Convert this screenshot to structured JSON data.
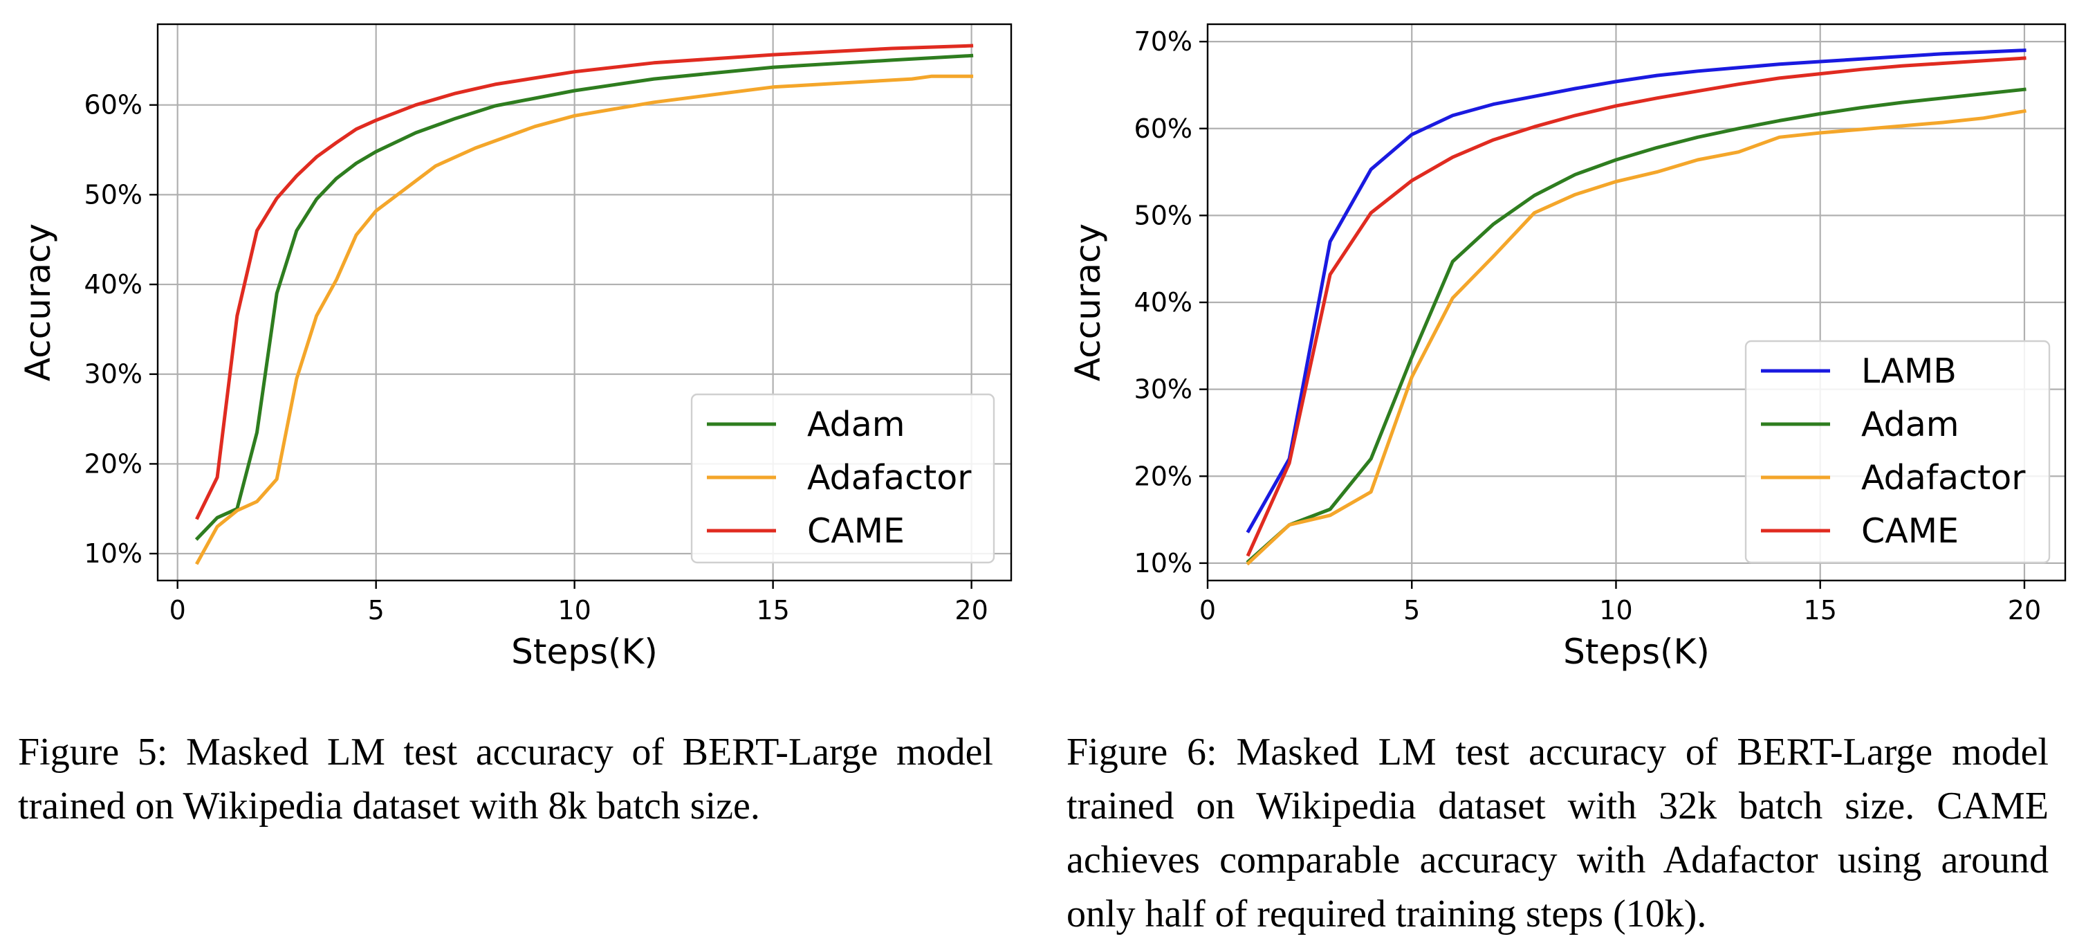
{
  "chart_data": [
    {
      "type": "line",
      "xlabel": "Steps(K)",
      "ylabel": "Accuracy",
      "xlim": [
        -0.5,
        21
      ],
      "ylim": [
        7,
        69
      ],
      "xticks": [
        "0",
        "5",
        "10",
        "15",
        "20"
      ],
      "yticks": [
        "10%",
        "20%",
        "30%",
        "40%",
        "50%",
        "60%"
      ],
      "grid": true,
      "legend_position": "lower-right",
      "series": [
        {
          "name": "Adam",
          "color": "#2e7d1f",
          "x": [
            0.5,
            1,
            1.5,
            2,
            2.5,
            3,
            3.5,
            4,
            4.5,
            5,
            6,
            7,
            8,
            10,
            12,
            15,
            18,
            20
          ],
          "y": [
            11.7,
            14,
            15,
            23.5,
            39,
            46,
            49.5,
            51.8,
            53.5,
            54.8,
            56.9,
            58.5,
            59.9,
            61.6,
            62.9,
            64.2,
            65,
            65.5
          ]
        },
        {
          "name": "Adafactor",
          "color": "#f4a62a",
          "x": [
            0.5,
            1,
            1.5,
            2,
            2.5,
            3,
            3.5,
            4,
            4.5,
            5,
            6.5,
            7.5,
            9,
            10,
            12,
            15,
            18.5,
            19,
            20
          ],
          "y": [
            9,
            13,
            14.8,
            15.8,
            18.3,
            29.5,
            36.5,
            40.5,
            45.5,
            48.2,
            53.2,
            55.2,
            57.6,
            58.8,
            60.3,
            62,
            62.9,
            63.2,
            63.2
          ]
        },
        {
          "name": "CAME",
          "color": "#e02b20",
          "x": [
            0.5,
            1,
            1.5,
            2,
            2.5,
            3,
            3.5,
            4,
            4.5,
            5,
            6,
            7,
            8,
            10,
            12,
            15,
            18,
            20
          ],
          "y": [
            14,
            18.5,
            36.5,
            46,
            49.6,
            52.1,
            54.2,
            55.8,
            57.3,
            58.3,
            60,
            61.3,
            62.3,
            63.7,
            64.7,
            65.6,
            66.3,
            66.6
          ]
        }
      ]
    },
    {
      "type": "line",
      "xlabel": "Steps(K)",
      "ylabel": "Accuracy",
      "xlim": [
        0,
        21
      ],
      "ylim": [
        8,
        72
      ],
      "xticks": [
        "0",
        "5",
        "10",
        "15",
        "20"
      ],
      "yticks": [
        "10%",
        "20%",
        "30%",
        "40%",
        "50%",
        "60%",
        "70%"
      ],
      "grid": true,
      "legend_position": "lower-right",
      "series": [
        {
          "name": "LAMB",
          "color": "#1a1ae0",
          "x": [
            1,
            2,
            3,
            4,
            5,
            6,
            7,
            8,
            9,
            10,
            11,
            12,
            13,
            14,
            15,
            16,
            17,
            18,
            19,
            20
          ],
          "y": [
            13.7,
            22,
            47,
            55.3,
            59.3,
            61.5,
            62.8,
            63.7,
            64.6,
            65.4,
            66.1,
            66.6,
            67,
            67.4,
            67.7,
            68,
            68.3,
            68.6,
            68.8,
            69
          ]
        },
        {
          "name": "Adam",
          "color": "#2e7d1f",
          "x": [
            1,
            2,
            3,
            4,
            5,
            6,
            7,
            8,
            9,
            10,
            11,
            12,
            13,
            14,
            15,
            16,
            17,
            18,
            19,
            20
          ],
          "y": [
            10.2,
            14.4,
            16.2,
            22,
            33.7,
            44.7,
            49,
            52.3,
            54.7,
            56.4,
            57.8,
            59,
            60,
            60.9,
            61.7,
            62.4,
            63,
            63.5,
            64,
            64.5
          ]
        },
        {
          "name": "Adafactor",
          "color": "#f4a62a",
          "x": [
            1,
            2,
            3,
            4,
            5,
            6,
            7,
            8,
            9,
            10,
            11,
            12,
            13,
            14,
            15,
            16,
            17,
            18,
            19,
            20
          ],
          "y": [
            10,
            14.4,
            15.5,
            18.2,
            31.4,
            40.5,
            45.3,
            50.3,
            52.4,
            53.9,
            55,
            56.4,
            57.3,
            59,
            59.5,
            59.9,
            60.3,
            60.7,
            61.2,
            62
          ]
        },
        {
          "name": "CAME",
          "color": "#e02b20",
          "x": [
            1,
            2,
            3,
            4,
            5,
            6,
            7,
            8,
            9,
            10,
            11,
            12,
            13,
            14,
            15,
            16,
            17,
            18,
            19,
            20
          ],
          "y": [
            11,
            21.5,
            43.2,
            50.3,
            54,
            56.7,
            58.7,
            60.2,
            61.5,
            62.6,
            63.5,
            64.3,
            65.1,
            65.8,
            66.3,
            66.8,
            67.2,
            67.5,
            67.8,
            68.1
          ]
        }
      ]
    }
  ],
  "captions": {
    "left": "Figure 5: Masked LM test accuracy of BERT-Large model trained on Wikipedia dataset with 8k batch size.",
    "right": "Figure 6: Masked LM test accuracy of BERT-Large model trained on Wikipedia dataset with 32k batch size. CAME achieves comparable accuracy with Adafactor using around only half of required training steps (10k)."
  }
}
